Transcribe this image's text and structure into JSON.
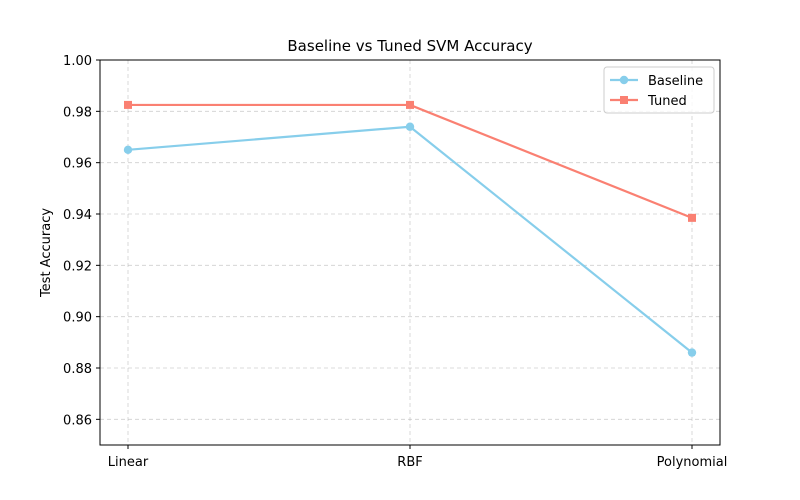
{
  "chart_data": {
    "type": "line",
    "title": "Baseline vs Tuned SVM Accuracy",
    "xlabel": "",
    "ylabel": "Test Accuracy",
    "categories": [
      "Linear",
      "RBF",
      "Polynomial"
    ],
    "ylim": [
      0.85,
      1.0
    ],
    "yticks": [
      "0.86",
      "0.88",
      "0.90",
      "0.92",
      "0.94",
      "0.96",
      "0.98",
      "1.00"
    ],
    "grid": true,
    "legend_position": "top-right",
    "series": [
      {
        "name": "Baseline",
        "values": [
          0.965,
          0.974,
          0.886
        ],
        "color": "#87CEEB",
        "marker": "circle"
      },
      {
        "name": "Tuned",
        "values": [
          0.9825,
          0.9825,
          0.9385
        ],
        "color": "#FA8072",
        "marker": "square"
      }
    ]
  }
}
